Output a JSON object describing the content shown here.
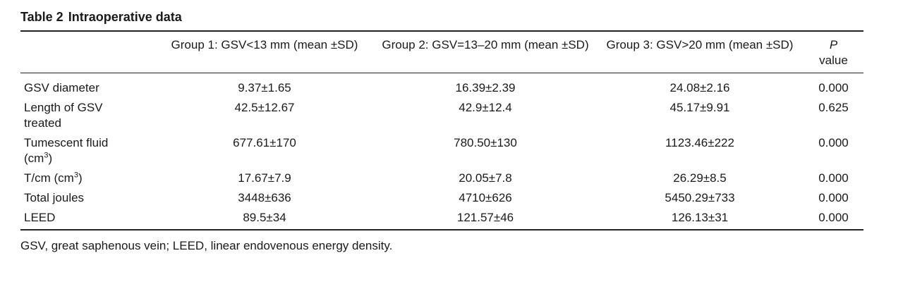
{
  "table": {
    "number": "Table 2",
    "title": "Intraoperative data",
    "headers": {
      "group1": "Group 1: GSV<13 mm (mean ±SD)",
      "group2": "Group 2: GSV=13–20 mm (mean ±SD)",
      "group3": "Group 3: GSV>20 mm (mean ±SD)",
      "p_label": "P",
      "p_value": "value"
    },
    "rows": [
      {
        "label": "GSV diameter",
        "unit": "",
        "g1": "9.37±1.65",
        "g2": "16.39±2.39",
        "g3": "24.08±2.16",
        "p": "0.000"
      },
      {
        "label": "Length of GSV treated",
        "unit": "",
        "g1": "42.5±12.67",
        "g2": "42.9±12.4",
        "g3": "45.17±9.91",
        "p": "0.625"
      },
      {
        "label": "Tumescent fluid (cm",
        "unit": "3",
        "unit_close": ")",
        "g1": "677.61±170",
        "g2": "780.50±130",
        "g3": "1123.46±222",
        "p": "0.000"
      },
      {
        "label": "T/cm (cm",
        "unit": "3",
        "unit_close": ")",
        "g1": "17.67±7.9",
        "g2": "20.05±7.8",
        "g3": "26.29±8.5",
        "p": "0.000"
      },
      {
        "label": "Total joules",
        "unit": "",
        "g1": "3448±636",
        "g2": "4710±626",
        "g3": "5450.29±733",
        "p": "0.000"
      },
      {
        "label": "LEED",
        "unit": "",
        "g1": "89.5±34",
        "g2": "121.57±46",
        "g3": "126.13±31",
        "p": "0.000"
      }
    ],
    "footnote": "GSV, great saphenous vein; LEED, linear endovenous energy density."
  }
}
